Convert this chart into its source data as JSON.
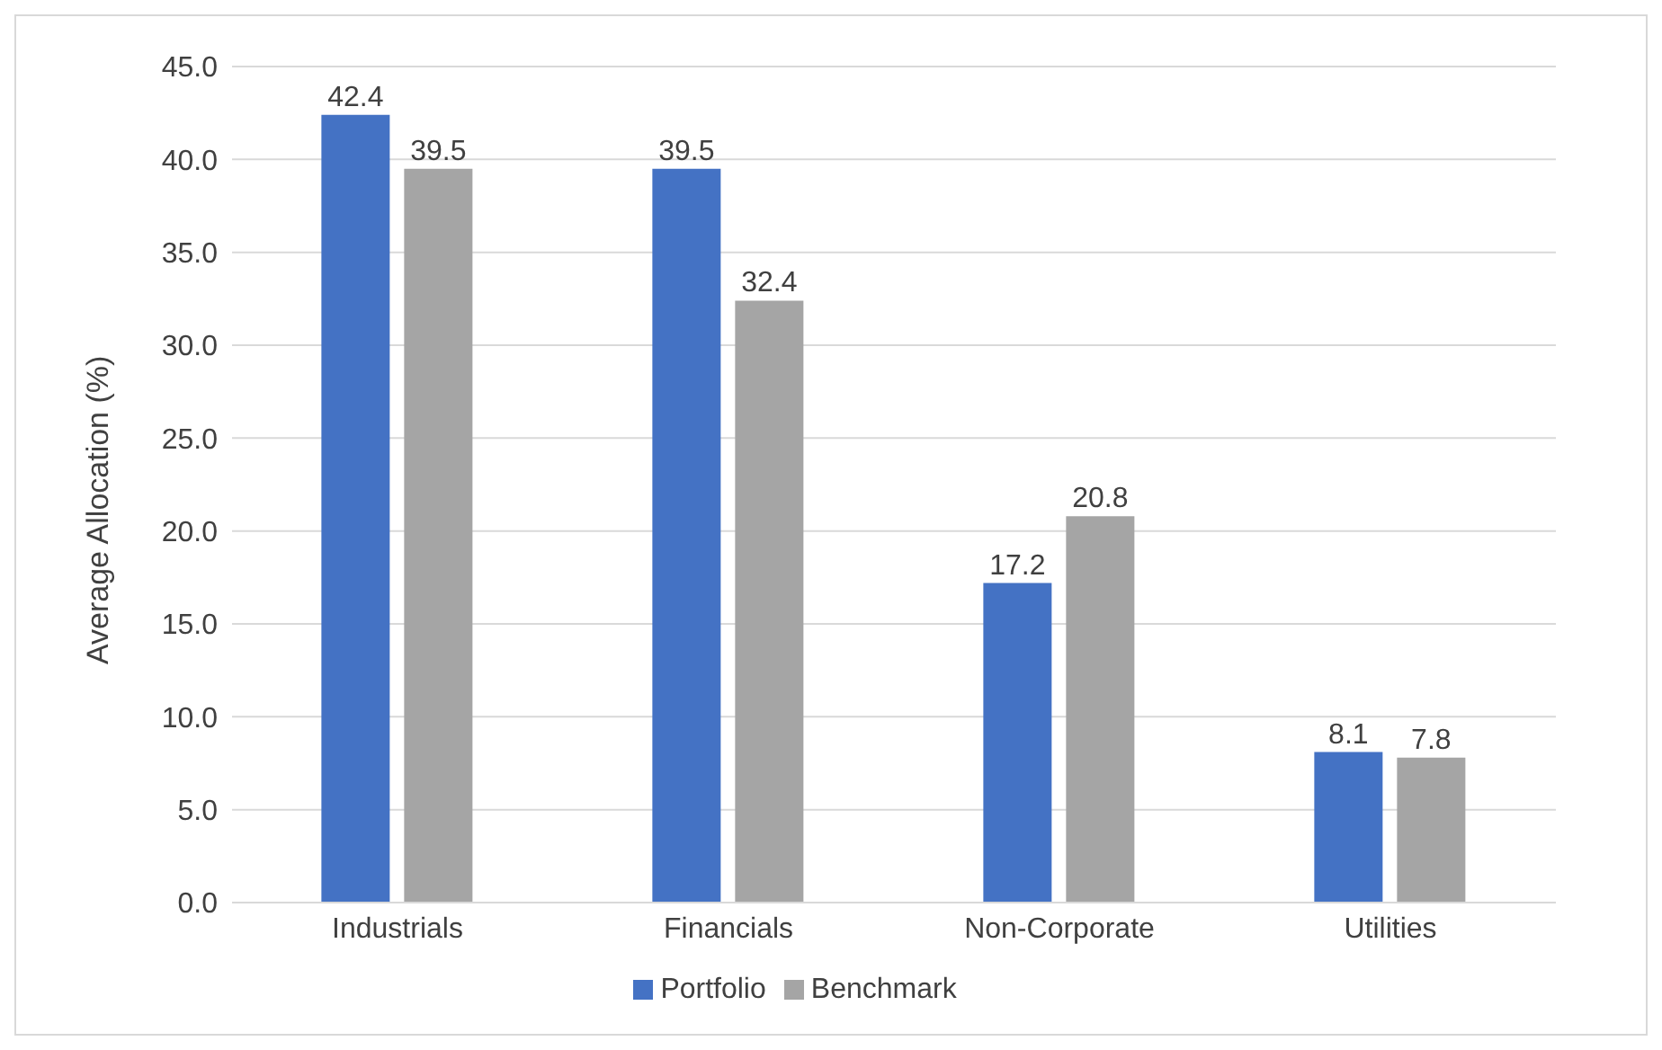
{
  "chart_data": {
    "type": "bar",
    "ylabel": "Average Allocation (%)",
    "categories": [
      "Industrials",
      "Financials",
      "Non-Corporate",
      "Utilities"
    ],
    "series": [
      {
        "name": "Portfolio",
        "color": "#4472c4",
        "values": [
          42.4,
          39.5,
          17.2,
          8.1
        ]
      },
      {
        "name": "Benchmark",
        "color": "#a5a5a5",
        "values": [
          39.5,
          32.4,
          20.8,
          7.8
        ]
      }
    ],
    "ylim": [
      0,
      45
    ],
    "yticks": [
      {
        "value": 0,
        "label": "0.0"
      },
      {
        "value": 5,
        "label": "5.0"
      },
      {
        "value": 10,
        "label": "10.0"
      },
      {
        "value": 15,
        "label": "15.0"
      },
      {
        "value": 20,
        "label": "20.0"
      },
      {
        "value": 25,
        "label": "25.0"
      },
      {
        "value": 30,
        "label": "30.0"
      },
      {
        "value": 35,
        "label": "35.0"
      },
      {
        "value": 40,
        "label": "40.0"
      },
      {
        "value": 45,
        "label": "45.0"
      }
    ],
    "grid": "y",
    "legend": "bottom",
    "data_labels": true
  }
}
